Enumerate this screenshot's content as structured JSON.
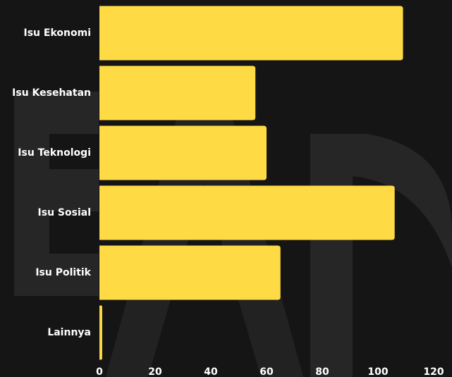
{
  "chart_data": {
    "type": "bar",
    "orientation": "horizontal",
    "categories": [
      "Isu Ekonomi",
      "Isu Kesehatan",
      "Isu Teknologi",
      "Isu Sosial",
      "Isu Politik",
      "Lainnya"
    ],
    "values": [
      109,
      56,
      60,
      106,
      65,
      1
    ],
    "color": "#fedb45",
    "xlim": [
      0,
      120
    ],
    "xticks": [
      0,
      20,
      40,
      60,
      80,
      100,
      120
    ],
    "grid": false
  }
}
